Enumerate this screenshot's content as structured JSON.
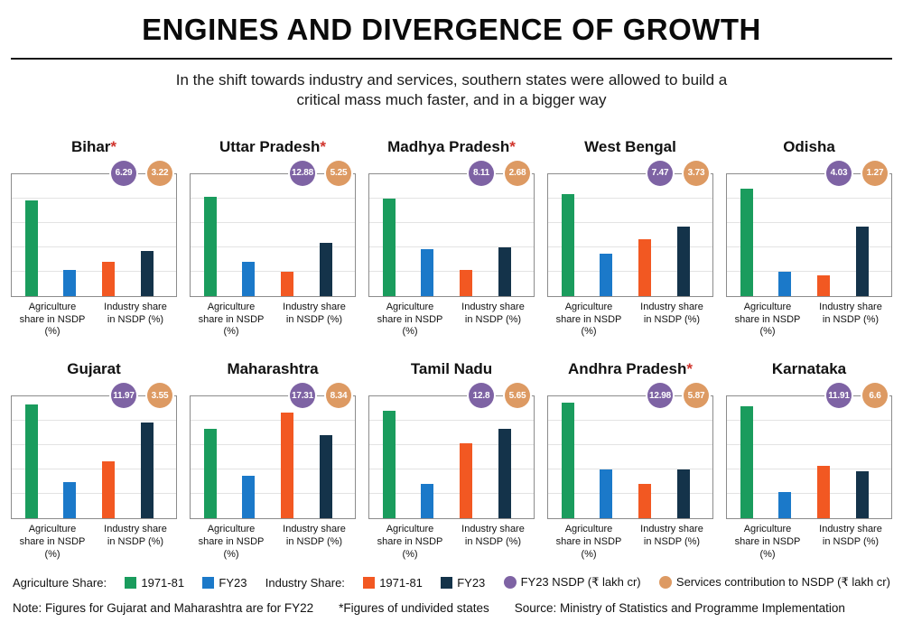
{
  "title": "ENGINES AND DIVERGENCE OF GROWTH",
  "subtitle": "In the shift towards industry and services, southern states were allowed to build a critical mass much faster, and in a bigger way",
  "colors": {
    "green": "#1a9c5d",
    "blue": "#1b79c9",
    "orange": "#f25822",
    "navy": "#14334a",
    "purple": "#7e63a4",
    "tan": "#dd9a63",
    "asterisk": "#d0342c"
  },
  "chart_data": {
    "type": "bar",
    "title": "ENGINES AND DIVERGENCE OF GROWTH",
    "subtitle": "In the shift towards industry and services, southern states were allowed to build a critical mass much faster, and in a bigger way",
    "categories": [
      "Agriculture share in NSDP (%)",
      "Industry share in NSDP (%)"
    ],
    "series_names": [
      "Agriculture 1971-81",
      "Agriculture FY23",
      "Industry 1971-81",
      "Industry FY23"
    ],
    "ylim": [
      0,
      60
    ],
    "grid": true,
    "legend_position": "bottom",
    "value_note": "Bar values estimated from unlabeled axis, in % of NSDP",
    "panels": [
      {
        "state": "Bihar",
        "asterisk": "*",
        "nsdp_fy23": "6.29",
        "services": "3.22",
        "agri_1971_81": 47,
        "agri_fy23": 13,
        "ind_1971_81": 17,
        "ind_fy23": 22
      },
      {
        "state": "Uttar Pradesh",
        "asterisk": "*",
        "nsdp_fy23": "12.88",
        "services": "5.25",
        "agri_1971_81": 49,
        "agri_fy23": 17,
        "ind_1971_81": 12,
        "ind_fy23": 26
      },
      {
        "state": "Madhya Pradesh",
        "asterisk": "*",
        "nsdp_fy23": "8.11",
        "services": "2.68",
        "agri_1971_81": 48,
        "agri_fy23": 23,
        "ind_1971_81": 13,
        "ind_fy23": 24
      },
      {
        "state": "West Bengal",
        "asterisk": "",
        "nsdp_fy23": "7.47",
        "services": "3.73",
        "agri_1971_81": 50,
        "agri_fy23": 21,
        "ind_1971_81": 28,
        "ind_fy23": 34
      },
      {
        "state": "Odisha",
        "asterisk": "",
        "nsdp_fy23": "4.03",
        "services": "1.27",
        "agri_1971_81": 53,
        "agri_fy23": 12,
        "ind_1971_81": 10,
        "ind_fy23": 34
      },
      {
        "state": "Gujarat",
        "asterisk": "",
        "nsdp_fy23": "11.97",
        "services": "3.55",
        "agri_1971_81": 56,
        "agri_fy23": 18,
        "ind_1971_81": 28,
        "ind_fy23": 47
      },
      {
        "state": "Maharashtra",
        "asterisk": "",
        "nsdp_fy23": "17.31",
        "services": "8.34",
        "agri_1971_81": 44,
        "agri_fy23": 21,
        "ind_1971_81": 52,
        "ind_fy23": 41
      },
      {
        "state": "Tamil Nadu",
        "asterisk": "",
        "nsdp_fy23": "12.8",
        "services": "5.65",
        "agri_1971_81": 53,
        "agri_fy23": 17,
        "ind_1971_81": 37,
        "ind_fy23": 44
      },
      {
        "state": "Andhra Pradesh",
        "asterisk": "*",
        "nsdp_fy23": "12.98",
        "services": "5.87",
        "agri_1971_81": 57,
        "agri_fy23": 24,
        "ind_1971_81": 17,
        "ind_fy23": 24
      },
      {
        "state": "Karnataka",
        "asterisk": "",
        "nsdp_fy23": "11.91",
        "services": "6.6",
        "agri_1971_81": 55,
        "agri_fy23": 13,
        "ind_1971_81": 26,
        "ind_fy23": 23
      }
    ]
  },
  "legend": {
    "agri_label": "Agriculture Share:",
    "agri_1971_81": "1971-81",
    "agri_fy23": "FY23",
    "ind_label": "Industry Share:",
    "ind_1971_81": "1971-81",
    "ind_fy23": "FY23",
    "nsdp": "FY23 NSDP (₹ lakh cr)",
    "services": "Services contribution to NSDP (₹ lakh cr)"
  },
  "footer": {
    "note": "Note: Figures for Gujarat and Maharashtra are for FY22",
    "undivided": "*Figures of undivided states",
    "source": "Source: Ministry of Statistics and Programme Implementation"
  }
}
